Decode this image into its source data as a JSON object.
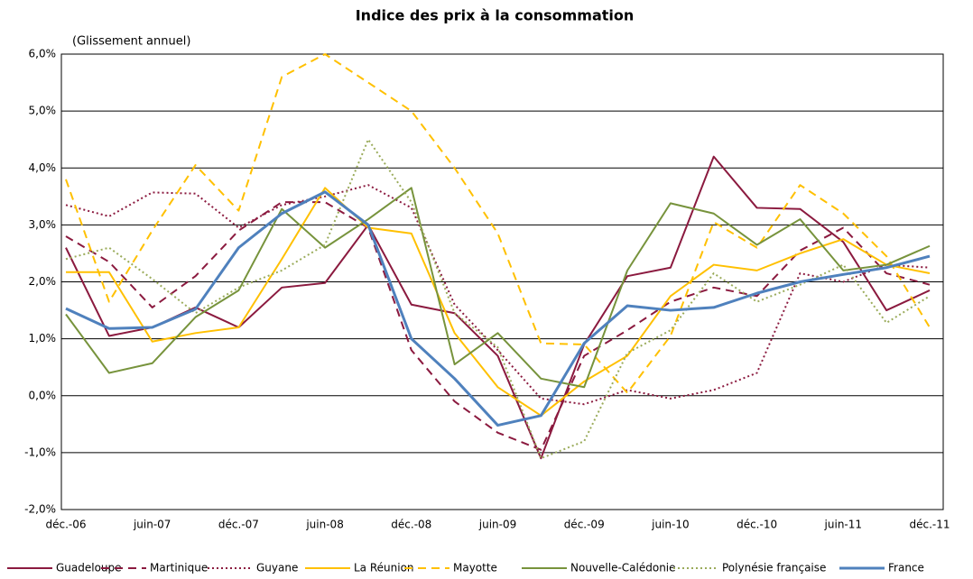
{
  "chart_data": {
    "type": "line",
    "title": "Indice des prix à la consommation",
    "subtitle": "(Glissement annuel)",
    "categories": [
      "déc.-06",
      null,
      "juin-07",
      null,
      "déc.-07",
      null,
      "juin-08",
      null,
      "déc.-08",
      null,
      "juin-09",
      null,
      "déc.-09",
      null,
      "juin-10",
      null,
      "déc.-10",
      null,
      "juin-11",
      null,
      "déc.-11"
    ],
    "ylim": [
      -2,
      6
    ],
    "yticks": [
      {
        "value": -2,
        "label": "-2,0%"
      },
      {
        "value": -1,
        "label": "-1,0%"
      },
      {
        "value": 0,
        "label": "0,0%"
      },
      {
        "value": 1,
        "label": "1,0%"
      },
      {
        "value": 2,
        "label": "2,0%"
      },
      {
        "value": 3,
        "label": "3,0%"
      },
      {
        "value": 4,
        "label": "4,0%"
      },
      {
        "value": 5,
        "label": "5,0%"
      },
      {
        "value": 6,
        "label": "6,0%"
      }
    ],
    "grid": true,
    "legend": "bottom",
    "series": [
      {
        "name": "Guadeloupe",
        "color": "#8b1a3f",
        "dash": "solid",
        "line_width": 2,
        "values": [
          2.6,
          1.05,
          1.2,
          1.55,
          1.2,
          1.9,
          1.98,
          3.0,
          1.6,
          1.45,
          0.7,
          -1.1,
          0.9,
          2.1,
          2.25,
          4.2,
          3.3,
          3.28,
          2.7,
          1.5,
          1.85
        ]
      },
      {
        "name": "Martinique",
        "color": "#8b1a3f",
        "dash": "dashed",
        "line_width": 2,
        "values": [
          2.8,
          2.35,
          1.55,
          2.1,
          2.9,
          3.4,
          3.4,
          2.95,
          0.8,
          -0.1,
          -0.65,
          -0.95,
          0.7,
          1.15,
          1.65,
          1.9,
          1.75,
          2.55,
          2.95,
          2.15,
          1.95
        ]
      },
      {
        "name": "Guyane",
        "color": "#8b1a3f",
        "dash": "dotted",
        "line_width": 2,
        "values": [
          3.35,
          3.15,
          3.57,
          3.55,
          2.95,
          3.35,
          3.5,
          3.7,
          3.3,
          1.6,
          0.8,
          -0.05,
          -0.15,
          0.1,
          -0.05,
          0.1,
          0.4,
          2.15,
          2.0,
          2.3,
          2.25
        ]
      },
      {
        "name": "La Réunion",
        "color": "#ffc000",
        "dash": "solid",
        "line_width": 2,
        "values": [
          2.17,
          2.17,
          0.95,
          1.1,
          1.2,
          2.4,
          3.65,
          2.95,
          2.85,
          1.1,
          0.15,
          -0.35,
          0.25,
          0.7,
          1.75,
          2.3,
          2.2,
          2.5,
          2.75,
          2.3,
          2.15
        ]
      },
      {
        "name": "Mayotte",
        "color": "#ffc000",
        "dash": "dashed",
        "line_width": 2,
        "values": [
          3.8,
          1.65,
          2.9,
          4.05,
          3.25,
          5.6,
          6.0,
          5.5,
          5.0,
          4.0,
          2.85,
          0.92,
          0.9,
          0.05,
          1.05,
          3.05,
          2.6,
          3.7,
          3.2,
          2.45,
          1.2
        ]
      },
      {
        "name": "Nouvelle-Calédonie",
        "color": "#77933c",
        "dash": "solid",
        "line_width": 2,
        "values": [
          1.43,
          0.4,
          0.57,
          1.38,
          1.85,
          3.28,
          2.6,
          3.1,
          3.65,
          0.55,
          1.1,
          0.3,
          0.15,
          2.2,
          3.38,
          3.2,
          2.65,
          3.1,
          2.2,
          2.3,
          2.63
        ]
      },
      {
        "name": "Polynésie française",
        "color": "#9aab5a",
        "dash": "dotted",
        "line_width": 2,
        "values": [
          2.4,
          2.6,
          2.05,
          1.45,
          1.9,
          2.2,
          2.65,
          4.5,
          3.4,
          1.45,
          0.85,
          -1.1,
          -0.8,
          0.75,
          1.15,
          2.15,
          1.65,
          1.95,
          2.3,
          1.28,
          1.75
        ]
      },
      {
        "name": "France",
        "color": "#4f81bd",
        "dash": "solid",
        "line_width": 3,
        "values": [
          1.53,
          1.18,
          1.2,
          1.52,
          2.6,
          3.2,
          3.58,
          3.0,
          1.0,
          0.3,
          -0.52,
          -0.35,
          0.92,
          1.58,
          1.5,
          1.55,
          1.8,
          2.0,
          2.13,
          2.25,
          2.45
        ]
      }
    ]
  }
}
